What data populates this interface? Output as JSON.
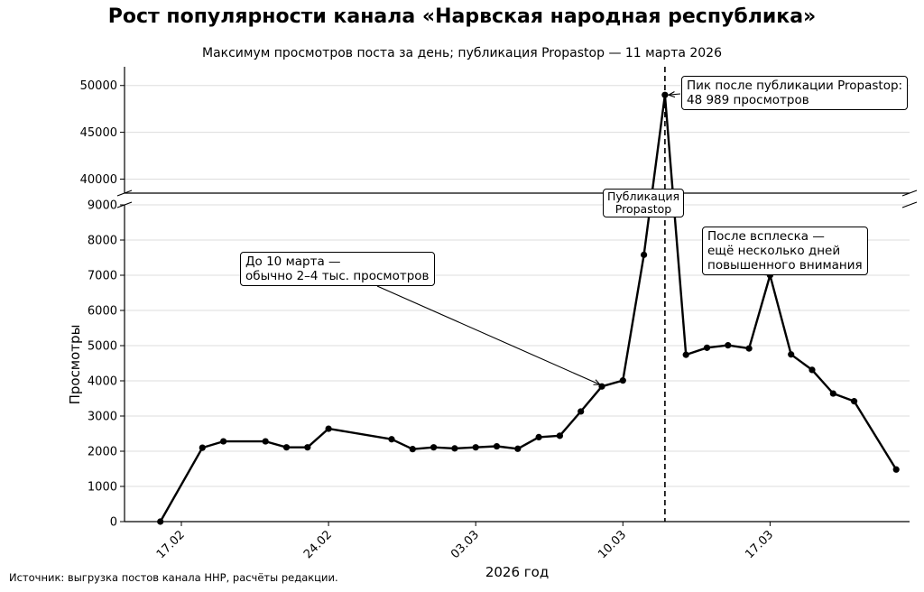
{
  "chart_data": {
    "type": "line",
    "title": "Рост популярности канала «Нарвская народная республика»",
    "subtitle": "Максимум просмотров поста за день; публикация Propastop — 11 марта 2026",
    "xlabel": "2026 год",
    "ylabel": "Просмотры",
    "source": "Источник: выгрузка постов канала ННР, расчёты редакции.",
    "x_ticks": [
      {
        "date": "2026-02-17",
        "label": "17.02"
      },
      {
        "date": "2026-02-24",
        "label": "24.02"
      },
      {
        "date": "2026-03-03",
        "label": "03.03"
      },
      {
        "date": "2026-03-10",
        "label": "10.03"
      },
      {
        "date": "2026-03-17",
        "label": "17.03"
      }
    ],
    "axis_break": {
      "lower_ylim": [
        0,
        9000
      ],
      "upper_ylim": [
        38500,
        52000
      ],
      "lower_ticks": [
        0,
        1000,
        2000,
        3000,
        4000,
        5000,
        6000,
        7000,
        8000,
        9000
      ],
      "upper_ticks": [
        40000,
        45000,
        50000
      ]
    },
    "grid": "horizontal",
    "series": [
      {
        "color": "#000000",
        "points": [
          {
            "x": "2026-02-16",
            "y": 0
          },
          {
            "x": "2026-02-18",
            "y": 2100
          },
          {
            "x": "2026-02-19",
            "y": 2280
          },
          {
            "x": "2026-02-21",
            "y": 2280
          },
          {
            "x": "2026-02-22",
            "y": 2110
          },
          {
            "x": "2026-02-23",
            "y": 2110
          },
          {
            "x": "2026-02-24",
            "y": 2640
          },
          {
            "x": "2026-02-27",
            "y": 2340
          },
          {
            "x": "2026-02-28",
            "y": 2060
          },
          {
            "x": "2026-03-01",
            "y": 2110
          },
          {
            "x": "2026-03-02",
            "y": 2080
          },
          {
            "x": "2026-03-03",
            "y": 2110
          },
          {
            "x": "2026-03-04",
            "y": 2140
          },
          {
            "x": "2026-03-05",
            "y": 2070
          },
          {
            "x": "2026-03-06",
            "y": 2400
          },
          {
            "x": "2026-03-07",
            "y": 2440
          },
          {
            "x": "2026-03-08",
            "y": 3130
          },
          {
            "x": "2026-03-09",
            "y": 3840
          },
          {
            "x": "2026-03-10",
            "y": 4010
          },
          {
            "x": "2026-03-11",
            "y": 7580
          },
          {
            "x": "2026-03-12",
            "y": 48989
          },
          {
            "x": "2026-03-13",
            "y": 4740
          },
          {
            "x": "2026-03-14",
            "y": 4940
          },
          {
            "x": "2026-03-15",
            "y": 5010
          },
          {
            "x": "2026-03-16",
            "y": 4920
          },
          {
            "x": "2026-03-17",
            "y": 7000
          },
          {
            "x": "2026-03-18",
            "y": 4750
          },
          {
            "x": "2026-03-19",
            "y": 4310
          },
          {
            "x": "2026-03-20",
            "y": 3640
          },
          {
            "x": "2026-03-21",
            "y": 3420
          },
          {
            "x": "2026-03-23",
            "y": 1480
          }
        ]
      }
    ],
    "vline": {
      "date": "2026-03-12",
      "style": "dashed"
    },
    "annotations": [
      {
        "id": "peak",
        "lines": [
          "Пик после публикации Propastop:",
          "48 989 просмотров"
        ],
        "target": {
          "x": "2026-03-12",
          "y": 48989
        }
      },
      {
        "id": "before",
        "lines": [
          "До 10 марта —",
          "обычно 2–4 тыс. просмотров"
        ],
        "target": {
          "x": "2026-03-09",
          "y": 3840
        }
      },
      {
        "id": "publication",
        "lines": [
          "Публикация",
          "Propastop"
        ]
      },
      {
        "id": "after",
        "lines": [
          "После всплеска —",
          "ещё несколько дней",
          "повышенного внимания"
        ],
        "target": {
          "x": "2026-03-17",
          "y": 7000
        }
      }
    ]
  }
}
